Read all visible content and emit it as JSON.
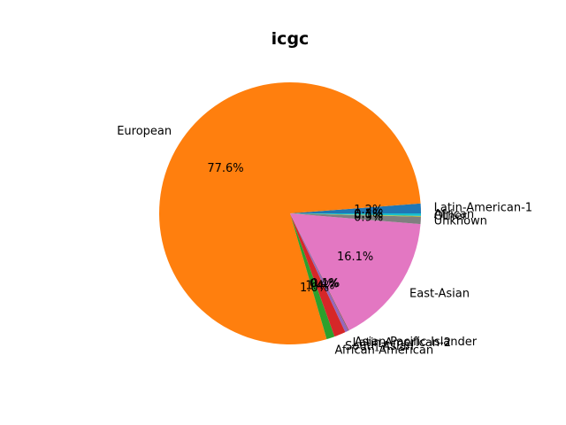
{
  "chart_data": {
    "type": "pie",
    "title": "icgc",
    "start_angle_deg": 0,
    "direction": "counterclockwise",
    "slices": [
      {
        "label": "Latin-American-1",
        "value": 1.2,
        "pct_label": "1.2%",
        "color": "#1f77b4"
      },
      {
        "label": "European",
        "value": 77.6,
        "pct_label": "77.6%",
        "color": "#ff7f0e"
      },
      {
        "label": "African-American",
        "value": 1.0,
        "pct_label": "1.0%",
        "color": "#2ca02c"
      },
      {
        "label": "South-Asian",
        "value": 1.4,
        "pct_label": "1.4%",
        "color": "#d62728"
      },
      {
        "label": "Latin-American-2",
        "value": 0.4,
        "pct_label": "0.4%",
        "color": "#9467bd"
      },
      {
        "label": "Asian-Pacific-Islander",
        "value": 0.1,
        "pct_label": "0.1%",
        "color": "#8c564b"
      },
      {
        "label": "East-Asian",
        "value": 16.1,
        "pct_label": "16.1%",
        "color": "#e377c2"
      },
      {
        "label": "Unknown",
        "value": 0.9,
        "pct_label": "0.9%",
        "color": "#7f7f7f"
      },
      {
        "label": "Other",
        "value": 0.1,
        "pct_label": "0.1%",
        "color": "#bcbd22"
      },
      {
        "label": "African",
        "value": 0.3,
        "pct_label": "0.3%",
        "color": "#17becf"
      }
    ]
  }
}
